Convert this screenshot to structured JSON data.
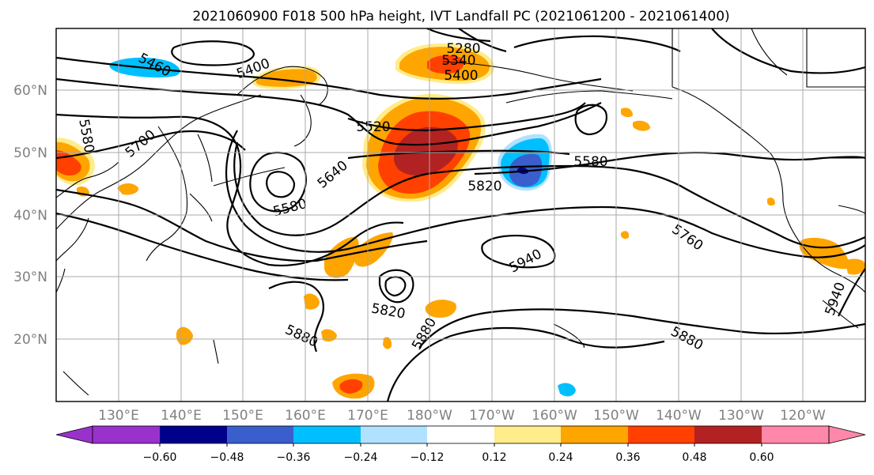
{
  "title": "2021060900 F018 500 hPa height, IVT Landfall PC (2021061200 - 2021061400)",
  "y_ticks": [
    "60°N",
    "50°N",
    "40°N",
    "30°N",
    "20°N"
  ],
  "x_ticks": [
    "130°E",
    "140°E",
    "150°E",
    "160°E",
    "170°E",
    "180°W",
    "170°W",
    "160°W",
    "150°W",
    "140°W",
    "130°W",
    "120°W"
  ],
  "contour_labels": [
    "5460",
    "5400",
    "5280",
    "5340",
    "5400",
    "5580",
    "5700",
    "5520",
    "5640",
    "5580",
    "5820",
    "5580",
    "5760",
    "5940",
    "5820",
    "5880",
    "5880",
    "5880",
    "5940"
  ],
  "colorbar": {
    "tick_labels": [
      "−0.60",
      "−0.48",
      "−0.36",
      "−0.24",
      "−0.12",
      "0.12",
      "0.24",
      "0.36",
      "0.48",
      "0.60"
    ],
    "colors": [
      "#9932cc",
      "#00008b",
      "#3a5fcd",
      "#00bfff",
      "#b0e2ff",
      "#ffffff",
      "#ffec8b",
      "#ffa500",
      "#ff4000",
      "#b22222",
      "#ff88aa"
    ]
  },
  "shading_colors": {
    "yellow": "#ffec8b",
    "orange": "#ffa500",
    "red_orange": "#ff4000",
    "dark_red": "#b22222",
    "light_blue": "#b0e2ff",
    "sky_blue": "#00bfff",
    "blue": "#3a5fcd",
    "navy": "#00008b"
  }
}
